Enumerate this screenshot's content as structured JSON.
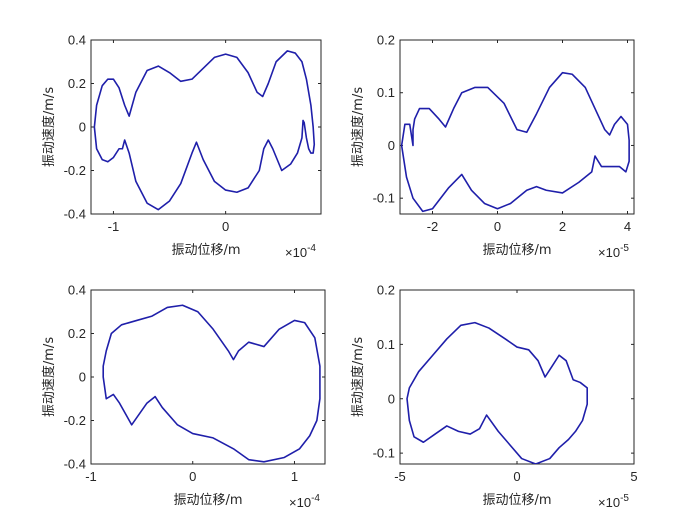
{
  "chart_data": [
    {
      "type": "line",
      "title": "",
      "xlabel": "振动位移/m",
      "ylabel": "振动速度/m/s",
      "x_exponent_label": "×10",
      "x_exponent": "-4",
      "xlim": [
        -1.2,
        0.85
      ],
      "ylim": [
        -0.4,
        0.4
      ],
      "xticks": [
        -1,
        0
      ],
      "xtick_labels": [
        "-1",
        "0"
      ],
      "yticks": [
        -0.4,
        -0.2,
        0,
        0.2,
        0.4
      ],
      "ytick_labels": [
        "-0.4",
        "-0.2",
        "0",
        "0.2",
        "0.4"
      ],
      "grid": false,
      "line_color": "#1f1faa",
      "series": [
        {
          "x": [
            -1.17,
            -1.15,
            -1.1,
            -1.05,
            -1.0,
            -0.95,
            -0.9,
            -0.86,
            -0.8,
            -0.7,
            -0.6,
            -0.5,
            -0.4,
            -0.3,
            -0.2,
            -0.1,
            0.0,
            0.1,
            0.2,
            0.28,
            0.33,
            0.38,
            0.45,
            0.55,
            0.62,
            0.68,
            0.72,
            0.76,
            0.78,
            0.79,
            0.78,
            0.76,
            0.74,
            0.72,
            0.7,
            0.69,
            0.68,
            0.64,
            0.58,
            0.5,
            0.42,
            0.38,
            0.34,
            0.3,
            0.2,
            0.1,
            0.0,
            -0.1,
            -0.2,
            -0.26,
            -0.3,
            -0.4,
            -0.5,
            -0.6,
            -0.7,
            -0.8,
            -0.86,
            -0.9,
            -0.92,
            -0.95,
            -1.0,
            -1.05,
            -1.1,
            -1.15,
            -1.17
          ],
          "y": [
            0.0,
            0.1,
            0.19,
            0.22,
            0.22,
            0.18,
            0.1,
            0.05,
            0.16,
            0.26,
            0.28,
            0.25,
            0.21,
            0.22,
            0.27,
            0.32,
            0.335,
            0.32,
            0.25,
            0.16,
            0.14,
            0.2,
            0.3,
            0.35,
            0.34,
            0.3,
            0.22,
            0.1,
            0.0,
            -0.08,
            -0.12,
            -0.12,
            -0.1,
            -0.05,
            0.02,
            0.03,
            -0.05,
            -0.12,
            -0.17,
            -0.2,
            -0.1,
            -0.06,
            -0.1,
            -0.2,
            -0.28,
            -0.3,
            -0.29,
            -0.25,
            -0.15,
            -0.07,
            -0.12,
            -0.26,
            -0.34,
            -0.38,
            -0.35,
            -0.25,
            -0.12,
            -0.06,
            -0.1,
            -0.1,
            -0.14,
            -0.16,
            -0.15,
            -0.1,
            0.0
          ]
        }
      ]
    },
    {
      "type": "line",
      "title": "",
      "xlabel": "振动位移/m",
      "ylabel": "振动速度/m/s",
      "x_exponent_label": "×10",
      "x_exponent": "-5",
      "xlim": [
        -3.0,
        4.2
      ],
      "ylim": [
        -0.13,
        0.2
      ],
      "xticks": [
        -2,
        0,
        2,
        4
      ],
      "xtick_labels": [
        "-2",
        "0",
        "2",
        "4"
      ],
      "yticks": [
        -0.1,
        0,
        0.1,
        0.2
      ],
      "ytick_labels": [
        "-0.1",
        "0",
        "0.1",
        "0.2"
      ],
      "grid": false,
      "line_color": "#1f1faa",
      "series": [
        {
          "x": [
            -2.95,
            -2.85,
            -2.7,
            -2.6,
            -2.6,
            -2.55,
            -2.4,
            -2.1,
            -1.8,
            -1.6,
            -1.35,
            -1.1,
            -0.7,
            -0.3,
            0.2,
            0.6,
            0.9,
            1.2,
            1.6,
            2.0,
            2.3,
            2.7,
            3.0,
            3.3,
            3.45,
            3.6,
            3.8,
            4.0,
            4.05,
            4.05,
            3.95,
            3.75,
            3.5,
            3.2,
            3.0,
            2.9,
            2.5,
            2.0,
            1.5,
            1.2,
            0.9,
            0.4,
            0.0,
            -0.4,
            -0.8,
            -1.1,
            -1.5,
            -2.0,
            -2.3,
            -2.6,
            -2.8,
            -2.95
          ],
          "y": [
            0.0,
            0.04,
            0.04,
            0.0,
            0.03,
            0.05,
            0.07,
            0.07,
            0.05,
            0.035,
            0.07,
            0.1,
            0.11,
            0.11,
            0.08,
            0.03,
            0.025,
            0.06,
            0.11,
            0.138,
            0.135,
            0.11,
            0.07,
            0.03,
            0.02,
            0.04,
            0.055,
            0.04,
            0.01,
            -0.03,
            -0.05,
            -0.04,
            -0.04,
            -0.04,
            -0.02,
            -0.05,
            -0.07,
            -0.09,
            -0.085,
            -0.078,
            -0.085,
            -0.11,
            -0.12,
            -0.11,
            -0.085,
            -0.055,
            -0.08,
            -0.12,
            -0.125,
            -0.1,
            -0.06,
            0.0
          ]
        }
      ]
    },
    {
      "type": "line",
      "title": "",
      "xlabel": "振动位移/m",
      "ylabel": "振动速度/m/s",
      "x_exponent_label": "×10",
      "x_exponent": "-4",
      "xlim": [
        -1.0,
        1.3
      ],
      "ylim": [
        -0.4,
        0.4
      ],
      "xticks": [
        -1,
        0,
        1
      ],
      "xtick_labels": [
        "-1",
        "0",
        "1"
      ],
      "yticks": [
        -0.4,
        -0.2,
        0,
        0.2,
        0.4
      ],
      "ytick_labels": [
        "-0.4",
        "-0.2",
        "0",
        "0.2",
        "0.4"
      ],
      "grid": false,
      "line_color": "#1f1faa",
      "series": [
        {
          "x": [
            -0.88,
            -0.88,
            -0.85,
            -0.8,
            -0.7,
            -0.55,
            -0.4,
            -0.25,
            -0.1,
            0.05,
            0.2,
            0.35,
            0.4,
            0.45,
            0.55,
            0.7,
            0.85,
            1.0,
            1.1,
            1.2,
            1.25,
            1.25,
            1.22,
            1.15,
            1.05,
            0.9,
            0.7,
            0.55,
            0.4,
            0.2,
            0.0,
            -0.15,
            -0.3,
            -0.37,
            -0.45,
            -0.6,
            -0.72,
            -0.78,
            -0.85,
            -0.88
          ],
          "y": [
            0.0,
            0.05,
            0.12,
            0.2,
            0.24,
            0.26,
            0.28,
            0.32,
            0.33,
            0.3,
            0.22,
            0.12,
            0.08,
            0.12,
            0.16,
            0.14,
            0.22,
            0.26,
            0.25,
            0.18,
            0.05,
            -0.1,
            -0.2,
            -0.27,
            -0.33,
            -0.37,
            -0.39,
            -0.38,
            -0.33,
            -0.28,
            -0.26,
            -0.22,
            -0.14,
            -0.09,
            -0.12,
            -0.22,
            -0.12,
            -0.08,
            -0.1,
            0.0
          ]
        }
      ]
    },
    {
      "type": "line",
      "title": "",
      "xlabel": "振动位移/m",
      "ylabel": "振动速度/m/s",
      "x_exponent_label": "×10",
      "x_exponent": "-5",
      "xlim": [
        -5.0,
        5.0
      ],
      "ylim": [
        -0.12,
        0.2
      ],
      "xticks": [
        -5,
        0,
        5
      ],
      "xtick_labels": [
        "-5",
        "0",
        "5"
      ],
      "yticks": [
        -0.1,
        0,
        0.1,
        0.2
      ],
      "ytick_labels": [
        "-0.1",
        "0",
        "0.1",
        "0.2"
      ],
      "grid": false,
      "line_color": "#1f1faa",
      "series": [
        {
          "x": [
            -4.7,
            -4.6,
            -4.2,
            -3.6,
            -3.0,
            -2.4,
            -1.8,
            -1.2,
            -0.5,
            0.0,
            0.5,
            0.9,
            1.2,
            1.5,
            1.8,
            2.1,
            2.4,
            2.7,
            3.0,
            3.0,
            2.8,
            2.5,
            2.2,
            1.8,
            1.4,
            0.8,
            0.2,
            -0.3,
            -0.8,
            -1.3,
            -1.6,
            -2.0,
            -2.5,
            -3.0,
            -3.5,
            -4.0,
            -4.4,
            -4.6,
            -4.7
          ],
          "y": [
            0.0,
            0.02,
            0.05,
            0.08,
            0.11,
            0.135,
            0.14,
            0.13,
            0.11,
            0.095,
            0.09,
            0.07,
            0.04,
            0.06,
            0.08,
            0.07,
            0.035,
            0.03,
            0.02,
            -0.01,
            -0.04,
            -0.06,
            -0.075,
            -0.09,
            -0.11,
            -0.12,
            -0.11,
            -0.085,
            -0.06,
            -0.03,
            -0.055,
            -0.065,
            -0.06,
            -0.05,
            -0.065,
            -0.08,
            -0.07,
            -0.04,
            0.0
          ]
        }
      ]
    }
  ]
}
